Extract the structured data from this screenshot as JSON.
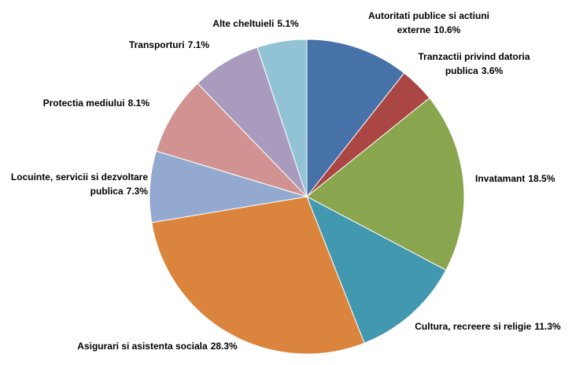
{
  "chart_data": {
    "type": "pie",
    "categories": [
      "Autoritati publice si actiuni externe",
      "Tranzactii privind datoria publica",
      "Invatamant",
      "Cultura, recreere si religie",
      "Asigurari si asistenta sociala",
      "Locuinte, servicii si dezvoltare publica",
      "Protectia mediului",
      "Transporturi",
      "Alte cheltuieli"
    ],
    "values": [
      10.6,
      3.6,
      18.5,
      11.3,
      28.3,
      7.3,
      8.1,
      7.1,
      5.1
    ],
    "value_labels": [
      "10.6%",
      "3.6%",
      "18.5%",
      "11.3%",
      "28.3%",
      "7.3%",
      "8.1%",
      "7.1%",
      "5.1%"
    ],
    "colors": [
      "#4672a8",
      "#aa4643",
      "#89a54e",
      "#4198af",
      "#db843d",
      "#93a9cf",
      "#d19392",
      "#a99bbd",
      "#92c3d5"
    ]
  }
}
